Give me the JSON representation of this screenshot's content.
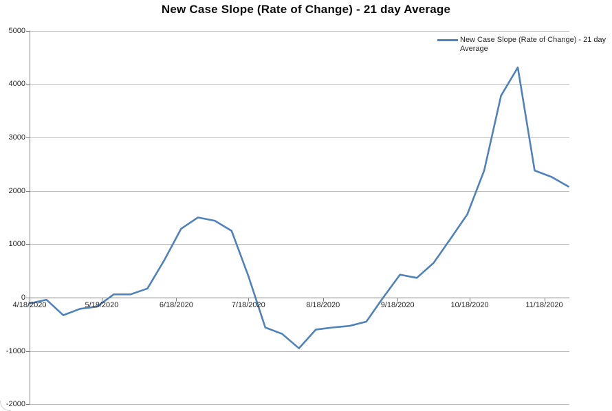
{
  "chart": {
    "title": "New Case Slope (Rate of Change) - 21 day Average",
    "legend_lines": [
      "New Case Slope (Rate of Change) - 21 day",
      "Average"
    ]
  },
  "colors": {
    "series": "#4F81BD",
    "gridline": "#BDBDBD",
    "axis": "#808080",
    "label_text": "#262626",
    "title_text": "#0D0D0D",
    "background": "#FFFFFF"
  },
  "chart_data": {
    "type": "line",
    "title": "New Case Slope (Rate of Change) - 21 day Average",
    "xlabel": "",
    "ylabel": "",
    "grid": "horizontal",
    "legend_position": "top-right",
    "ylim": [
      -2000,
      5000
    ],
    "y_ticks": [
      5000,
      4000,
      3000,
      2000,
      1000,
      0,
      -1000,
      -2000
    ],
    "x_tick_labels": [
      "4/18/2020",
      "5/18/2020",
      "6/18/2020",
      "7/18/2020",
      "8/18/2020",
      "9/18/2020",
      "10/18/2020",
      "11/18/2020"
    ],
    "x": [
      "4/18/2020",
      "4/25/2020",
      "5/2/2020",
      "5/9/2020",
      "5/16/2020",
      "5/23/2020",
      "5/30/2020",
      "6/6/2020",
      "6/13/2020",
      "6/20/2020",
      "6/27/2020",
      "7/4/2020",
      "7/11/2020",
      "7/18/2020",
      "7/25/2020",
      "8/1/2020",
      "8/8/2020",
      "8/15/2020",
      "8/22/2020",
      "8/29/2020",
      "9/5/2020",
      "9/12/2020",
      "9/19/2020",
      "9/26/2020",
      "10/3/2020",
      "10/10/2020",
      "10/17/2020",
      "10/24/2020",
      "10/31/2020",
      "11/7/2020",
      "11/14/2020",
      "11/21/2020",
      "11/28/2020"
    ],
    "series": [
      {
        "name": "New Case Slope (Rate of Change) - 21 day Average",
        "values": [
          -110,
          -40,
          -330,
          -210,
          -170,
          60,
          60,
          170,
          700,
          1290,
          1500,
          1440,
          1250,
          400,
          -560,
          -680,
          -950,
          -600,
          -560,
          -530,
          -450,
          0,
          430,
          370,
          650,
          1100,
          1560,
          2380,
          3780,
          4310,
          2380,
          2260,
          2080
        ]
      }
    ]
  }
}
